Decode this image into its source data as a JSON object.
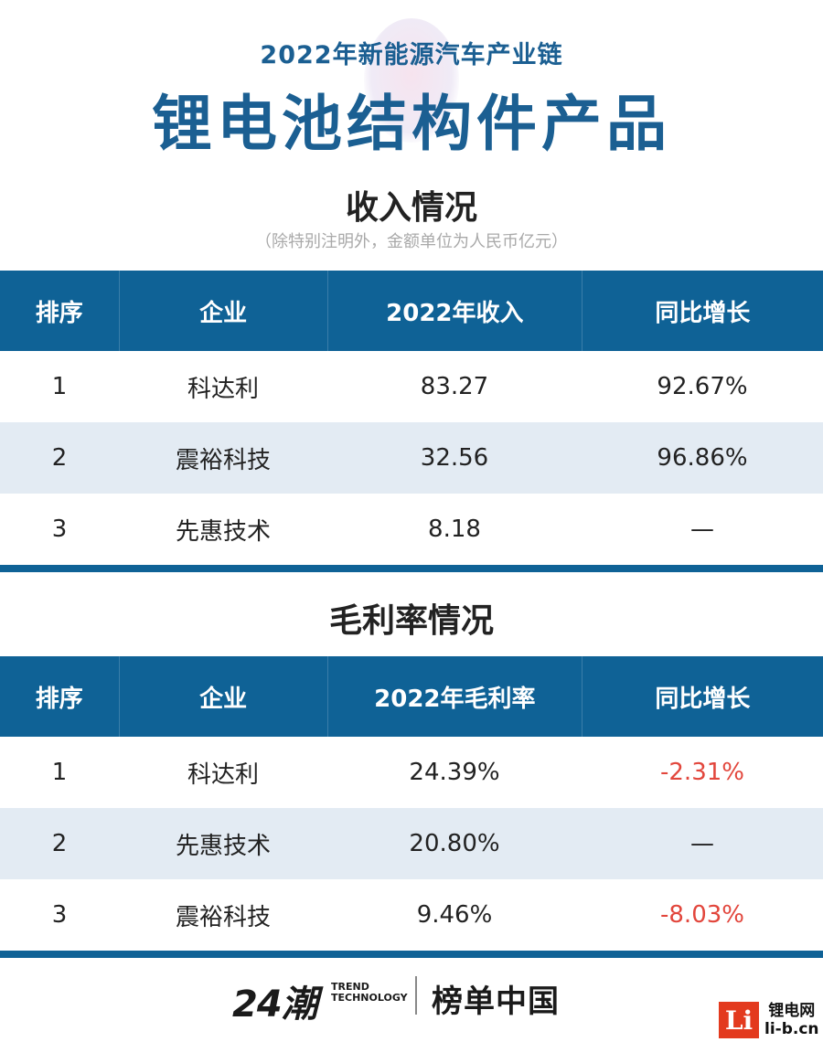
{
  "header": {
    "supertitle": "2022年新能源汽车产业链",
    "title": "锂电池结构件产品"
  },
  "revenue_section": {
    "title": "收入情况",
    "note": "（除特别注明外，金额单位为人民币亿元）",
    "columns": [
      "排序",
      "企业",
      "2022年收入",
      "同比增长"
    ],
    "rows": [
      {
        "rank": "1",
        "company": "科达利",
        "value": "83.27",
        "growth": "92.67%"
      },
      {
        "rank": "2",
        "company": "震裕科技",
        "value": "32.56",
        "growth": "96.86%"
      },
      {
        "rank": "3",
        "company": "先惠技术",
        "value": "8.18",
        "growth": "—"
      }
    ]
  },
  "margin_section": {
    "title": "毛利率情况",
    "columns": [
      "排序",
      "企业",
      "2022年毛利率",
      "同比增长"
    ],
    "rows": [
      {
        "rank": "1",
        "company": "科达利",
        "value": "24.39%",
        "growth": "-2.31%"
      },
      {
        "rank": "2",
        "company": "先惠技术",
        "value": "20.80%",
        "growth": "—"
      },
      {
        "rank": "3",
        "company": "震裕科技",
        "value": "9.46%",
        "growth": "-8.03%"
      }
    ]
  },
  "footer": {
    "logo_24": "24潮",
    "trend_line1": "TREND",
    "trend_line2": "TECHNOLOGY",
    "bangdan": "榜单中国"
  },
  "watermark": {
    "mark": "Li",
    "line1": "锂电网",
    "line2": "li-b.cn"
  },
  "colors": {
    "brand_blue": "#0f6296",
    "title_blue": "#1b5f92",
    "row_alt": "#e3ebf3",
    "negative": "#e2463c",
    "li_red": "#e33a1e"
  }
}
